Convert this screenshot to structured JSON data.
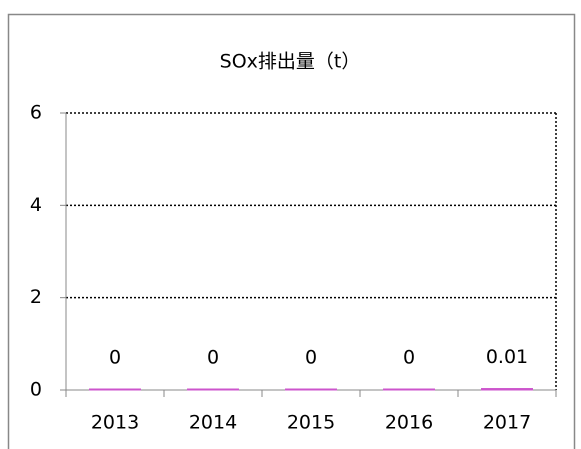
{
  "chart_data": {
    "type": "bar",
    "title": "SOx排出量（t）",
    "categories": [
      "2013",
      "2014",
      "2015",
      "2016",
      "2017"
    ],
    "values": [
      0,
      0,
      0,
      0,
      0.01
    ],
    "color": "#cc55cc",
    "ylim": [
      0,
      6
    ],
    "yticks": [
      0,
      2,
      4,
      6
    ],
    "grid": true
  }
}
